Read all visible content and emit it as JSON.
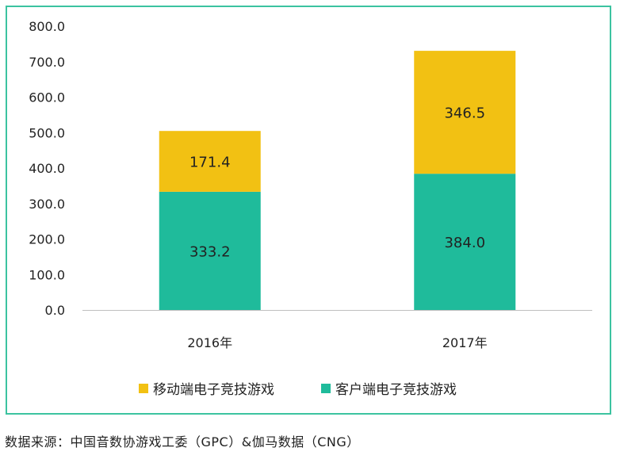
{
  "chart_data": {
    "type": "bar",
    "stacked": true,
    "categories": [
      "2016年",
      "2017年"
    ],
    "series": [
      {
        "name": "客户端电子竞技游戏",
        "values": [
          333.2,
          384.0
        ],
        "color": "#1fbb9b"
      },
      {
        "name": "移动端电子竞技游戏",
        "values": [
          171.4,
          346.5
        ],
        "color": "#f2c113"
      }
    ],
    "ylim": [
      0,
      800
    ],
    "yticks": [
      "0.0",
      "100.0",
      "200.0",
      "300.0",
      "400.0",
      "500.0",
      "600.0",
      "700.0",
      "800.0"
    ],
    "grid": false,
    "legend_position": "bottom",
    "title": "",
    "xlabel": "",
    "ylabel": ""
  },
  "source_note": "数据来源：中国音数协游戏工委（GPC）&伽马数据（CNG）"
}
